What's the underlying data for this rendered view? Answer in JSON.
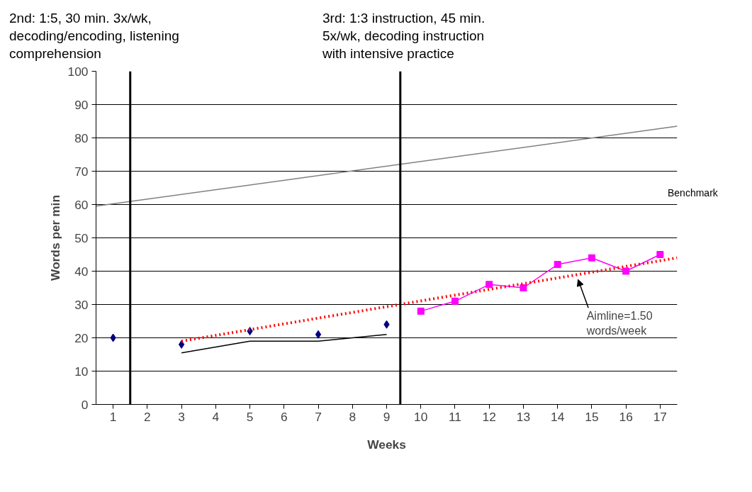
{
  "chart_data": {
    "type": "line",
    "xlabel": "Weeks",
    "ylabel": "Words per min",
    "xlim": [
      0.5,
      17.5
    ],
    "xticks": [
      1,
      2,
      3,
      4,
      5,
      6,
      7,
      8,
      9,
      10,
      11,
      12,
      13,
      14,
      15,
      16,
      17
    ],
    "ylim": [
      0,
      100
    ],
    "yticks": [
      0,
      10,
      20,
      30,
      40,
      50,
      60,
      70,
      80,
      90,
      100
    ],
    "grid": "y",
    "series": [
      {
        "type": "scatter",
        "marker": "diamond",
        "color": "#000080",
        "x": [
          1,
          3,
          5,
          7,
          9
        ],
        "values": [
          20,
          18,
          22,
          21,
          24
        ]
      },
      {
        "type": "line",
        "marker": "square",
        "color": "#ff00ff",
        "x": [
          10,
          11,
          12,
          13,
          14,
          15,
          16,
          17
        ],
        "values": [
          28,
          31,
          36,
          35,
          42,
          44,
          40,
          45
        ]
      },
      {
        "type": "line",
        "marker": "none",
        "color": "#000000",
        "x": [
          3,
          5,
          7,
          9
        ],
        "values": [
          15.5,
          19,
          19,
          21
        ]
      },
      {
        "type": "line",
        "marker": "none",
        "line_style": "dotted",
        "color": "#ff0000",
        "x": [
          3,
          17.5
        ],
        "values": [
          19,
          44
        ]
      },
      {
        "type": "line",
        "marker": "none",
        "color": "#808080",
        "x": [
          0.5,
          17.5
        ],
        "values": [
          59.5,
          83.5
        ]
      }
    ],
    "ref_lines": [
      {
        "axis": "x",
        "value": 1.5,
        "color": "#000000"
      },
      {
        "axis": "x",
        "value": 9.4,
        "color": "#000000"
      }
    ],
    "annotations": [
      "2nd: 1:5, 30 min. 3x/wk, decoding/encoding, listening comprehension",
      "3rd: 1:3 instruction, 45 min. 5x/wk, decoding instruction with intensive practice",
      "Benchmark",
      "Aimline=1.50 words/week"
    ]
  }
}
